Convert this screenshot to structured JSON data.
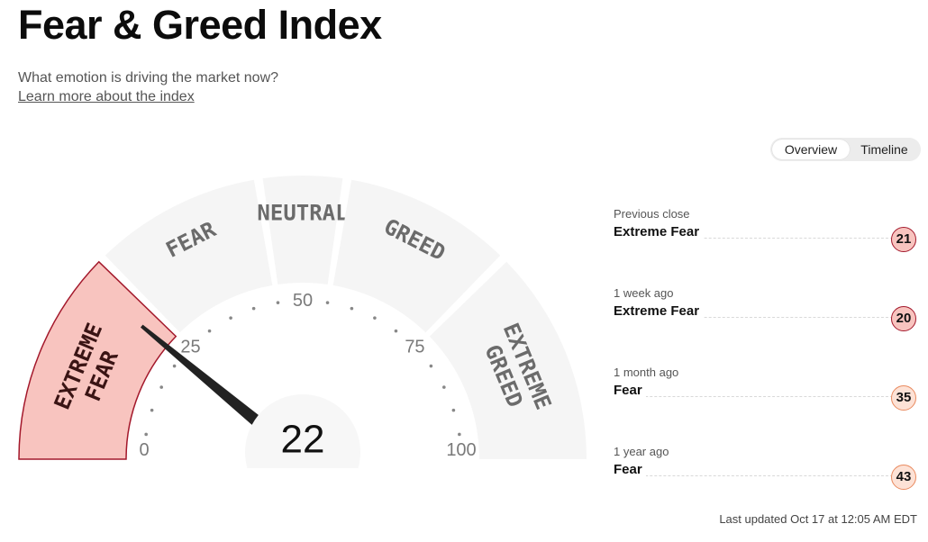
{
  "header": {
    "title": "Fear & Greed Index",
    "subtitle": "What emotion is driving the market now?",
    "learn_more": "Learn more about the index"
  },
  "view_toggle": {
    "overview_label": "Overview",
    "timeline_label": "Timeline",
    "active": "Overview"
  },
  "gauge": {
    "value": 22,
    "value_label": "22",
    "min": 0,
    "max": 100,
    "tick_labels": [
      "0",
      "25",
      "50",
      "75",
      "100"
    ],
    "segments": [
      {
        "label": "EXTREME FEAR",
        "from": 0,
        "to": 25,
        "active": true
      },
      {
        "label": "FEAR",
        "from": 25,
        "to": 45,
        "active": false
      },
      {
        "label": "NEUTRAL",
        "from": 45,
        "to": 55,
        "active": false
      },
      {
        "label": "GREED",
        "from": 55,
        "to": 75,
        "active": false
      },
      {
        "label": "EXTREME GREED",
        "from": 75,
        "to": 100,
        "active": false
      }
    ],
    "colors": {
      "active_fill": "#f8c4bf",
      "active_stroke": "#a3182b",
      "inactive_fill": "#f5f5f5",
      "needle": "#222222",
      "label": "#6b6b6b",
      "tick": "#888888"
    }
  },
  "history": [
    {
      "label": "Previous close",
      "value": "Extreme Fear",
      "score": "21",
      "fill": "#f8c4bf",
      "stroke": "#a3182b"
    },
    {
      "label": "1 week ago",
      "value": "Extreme Fear",
      "score": "20",
      "fill": "#f8c4bf",
      "stroke": "#a3182b"
    },
    {
      "label": "1 month ago",
      "value": "Fear",
      "score": "35",
      "fill": "#fde2d6",
      "stroke": "#e98a5f"
    },
    {
      "label": "1 year ago",
      "value": "Fear",
      "score": "43",
      "fill": "#fde2d6",
      "stroke": "#e98a5f"
    }
  ],
  "footer": {
    "last_updated": "Last updated Oct 17 at 12:05 AM EDT"
  }
}
